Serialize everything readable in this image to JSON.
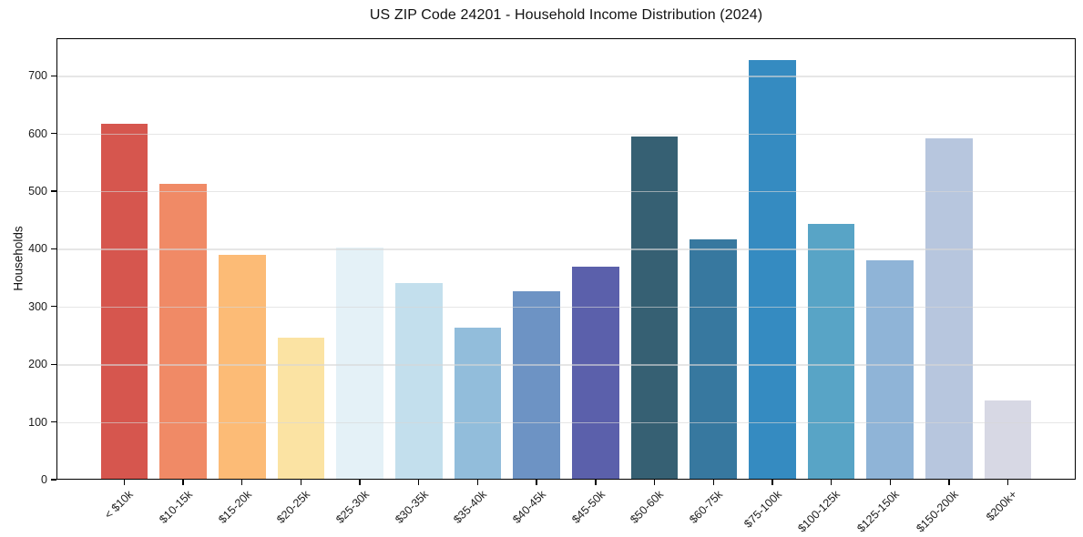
{
  "chart_data": {
    "type": "bar",
    "title": "US ZIP Code 24201 - Household Income Distribution (2024)",
    "xlabel": "",
    "ylabel": "Households",
    "categories": [
      "< $10k",
      "$10-15k",
      "$15-20k",
      "$20-25k",
      "$25-30k",
      "$30-35k",
      "$35-40k",
      "$40-45k",
      "$45-50k",
      "$50-60k",
      "$60-75k",
      "$75-100k",
      "$100-125k",
      "$125-150k",
      "$150-200k",
      "$200k+"
    ],
    "values": [
      616,
      513,
      390,
      246,
      403,
      341,
      263,
      327,
      369,
      594,
      417,
      727,
      443,
      380,
      591,
      138
    ],
    "bar_colors": [
      "#d6564e",
      "#f08a66",
      "#fcbb76",
      "#fbe3a3",
      "#e4f1f7",
      "#c3dfed",
      "#92bddb",
      "#6d93c4",
      "#5b60ab",
      "#366073",
      "#37789f",
      "#358bc1",
      "#58a4c6",
      "#8fb4d7",
      "#b7c6de",
      "#d7d8e4"
    ],
    "yticks": [
      0,
      100,
      200,
      300,
      400,
      500,
      600,
      700
    ],
    "ylim": [
      0,
      765
    ],
    "grid": true,
    "grid_color": "#e4e4e4",
    "legend": null,
    "background_color": "#ffffff",
    "spine_color": "#000000",
    "text_color": "#1c1c1c"
  }
}
